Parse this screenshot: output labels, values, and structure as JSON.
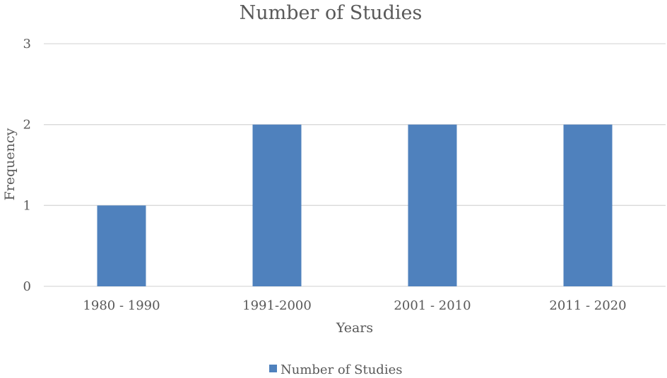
{
  "chart_data": {
    "type": "bar",
    "title": "Number of Studies",
    "xlabel": "Years",
    "ylabel": "Frequency",
    "categories": [
      "1980 - 1990",
      "1991-2000",
      "2001 - 2010",
      "2011 - 2020"
    ],
    "series": [
      {
        "name": "Number of Studies",
        "values": [
          1,
          2,
          2,
          2
        ],
        "color": "#4F81BD"
      }
    ],
    "ylim": [
      0,
      3
    ],
    "yticks": [
      0,
      1,
      2,
      3
    ],
    "grid": true,
    "legend_position": "bottom"
  }
}
